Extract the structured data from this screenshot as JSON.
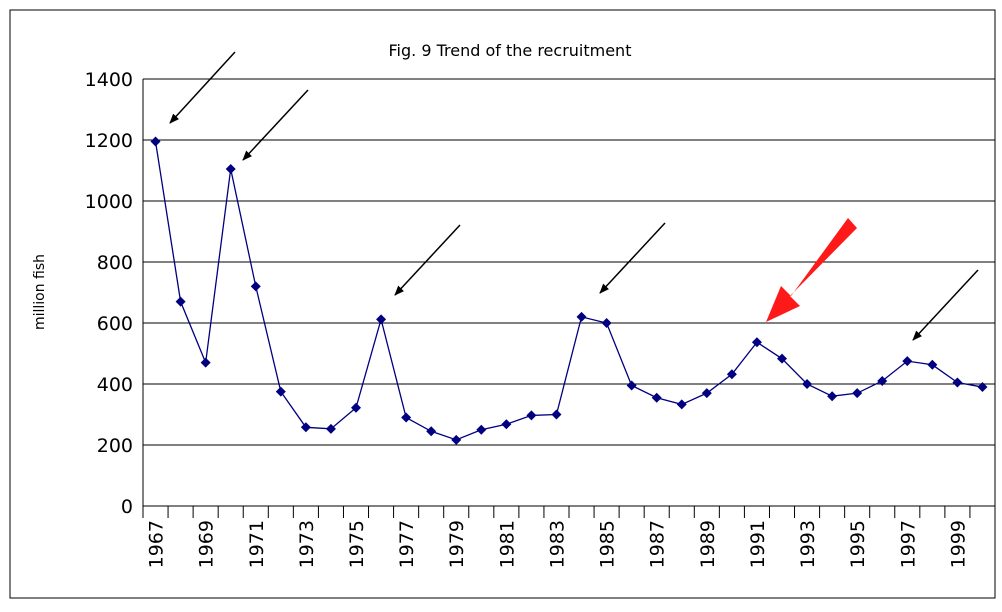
{
  "chart_data": {
    "type": "line",
    "title": "Fig. 9 Trend of the recruitment",
    "y_label": "million fish",
    "categories": [
      "1967",
      null,
      "1969",
      null,
      "1971",
      null,
      "1973",
      null,
      "1975",
      null,
      "1977",
      null,
      "1979",
      null,
      "1981",
      null,
      "1983",
      null,
      "1985",
      null,
      "1987",
      null,
      "1989",
      null,
      "1991",
      null,
      "1993",
      null,
      "1995",
      null,
      "1997",
      null,
      "1999",
      null
    ],
    "series": [
      {
        "name": "recruitment",
        "color": "#000080",
        "values": [
          1195,
          670,
          470,
          1105,
          720,
          375,
          258,
          253,
          322,
          612,
          290,
          245,
          217,
          250,
          268,
          297,
          300,
          620,
          600,
          395,
          355,
          333,
          370,
          432,
          537,
          483,
          400,
          360,
          370,
          410,
          475,
          463,
          405,
          390
        ]
      }
    ],
    "ylim": [
      0,
      1400
    ],
    "yticks": [
      0,
      200,
      400,
      600,
      800,
      1000,
      1200,
      1400
    ],
    "grid": true
  }
}
